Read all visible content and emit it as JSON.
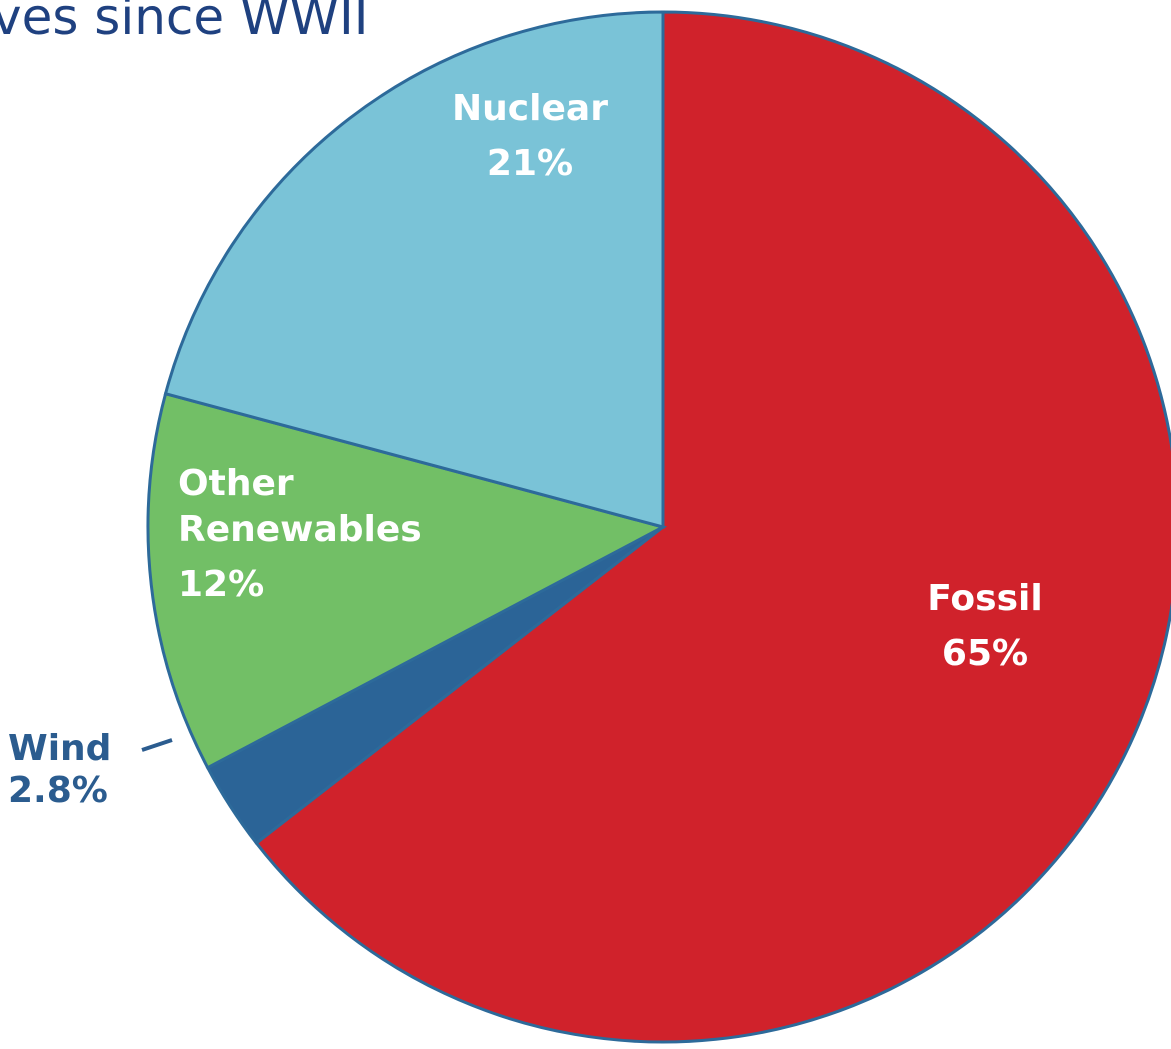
{
  "chart_data": {
    "type": "pie",
    "title": "ves since WWII",
    "categories": [
      "Fossil",
      "Wind",
      "Other Renewables",
      "Nuclear"
    ],
    "values": [
      65,
      2.8,
      12,
      21
    ],
    "value_labels": [
      "65%",
      "2.8%",
      "12%",
      "21%"
    ],
    "colors": [
      "#d0222b",
      "#2b6497",
      "#72bf66",
      "#7ac3d7"
    ]
  }
}
